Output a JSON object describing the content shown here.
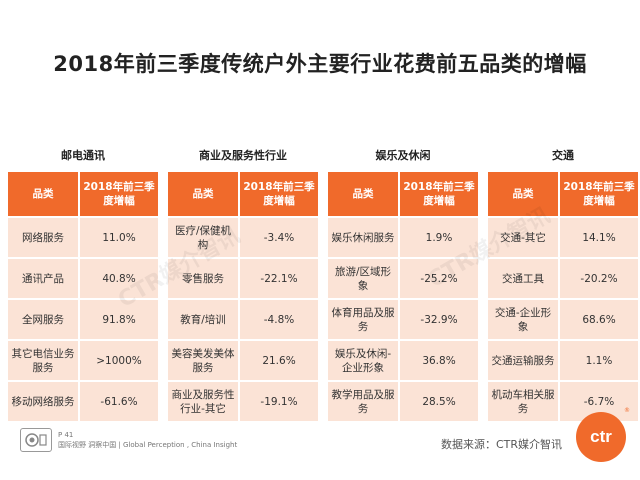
{
  "title": "2018年前三季度传统户外主要行业花费前五品类的增幅",
  "groups": [
    {
      "name": "邮电通讯",
      "header": [
        "品类",
        "2018年前三季度增幅"
      ],
      "rows": [
        [
          "网络服务",
          "11.0%"
        ],
        [
          "通讯产品",
          "40.8%"
        ],
        [
          "全网服务",
          "91.8%"
        ],
        [
          "其它电信业务服务",
          ">1000%"
        ],
        [
          "移动网络服务",
          "-61.6%"
        ]
      ]
    },
    {
      "name": "商业及服务性行业",
      "header": [
        "品类",
        "2018年前三季度增幅"
      ],
      "rows": [
        [
          "医疗/保健机构",
          "-3.4%"
        ],
        [
          "零售服务",
          "-22.1%"
        ],
        [
          "教育/培训",
          "-4.8%"
        ],
        [
          "美容美发美体服务",
          "21.6%"
        ],
        [
          "商业及服务性行业-其它",
          "-19.1%"
        ]
      ]
    },
    {
      "name": "娱乐及休闲",
      "header": [
        "品类",
        "2018年前三季度增幅"
      ],
      "rows": [
        [
          "娱乐休闲服务",
          "1.9%"
        ],
        [
          "旅游/区域形象",
          "-25.2%"
        ],
        [
          "体育用品及服务",
          "-32.9%"
        ],
        [
          "娱乐及休闲-企业形象",
          "36.8%"
        ],
        [
          "教学用品及服务",
          "28.5%"
        ]
      ]
    },
    {
      "name": "交通",
      "header": [
        "品类",
        "2018年前三季度增幅"
      ],
      "rows": [
        [
          "交通-其它",
          "14.1%"
        ],
        [
          "交通工具",
          "-20.2%"
        ],
        [
          "交通-企业形象",
          "68.6%"
        ],
        [
          "交通运输服务",
          "1.1%"
        ],
        [
          "机动车相关服务",
          "-6.7%"
        ]
      ]
    }
  ],
  "footer": {
    "page": "P 41",
    "tagline": "国际视野 洞察中国 | Global Perception , China Insight",
    "source": "数据来源：CTR媒介智讯",
    "logo_text": "ctr",
    "logo_mark": "®"
  },
  "watermark": "CTR媒介智讯",
  "colors": {
    "accent": "#f06a2b",
    "row_bg": "#fbe3d6"
  }
}
